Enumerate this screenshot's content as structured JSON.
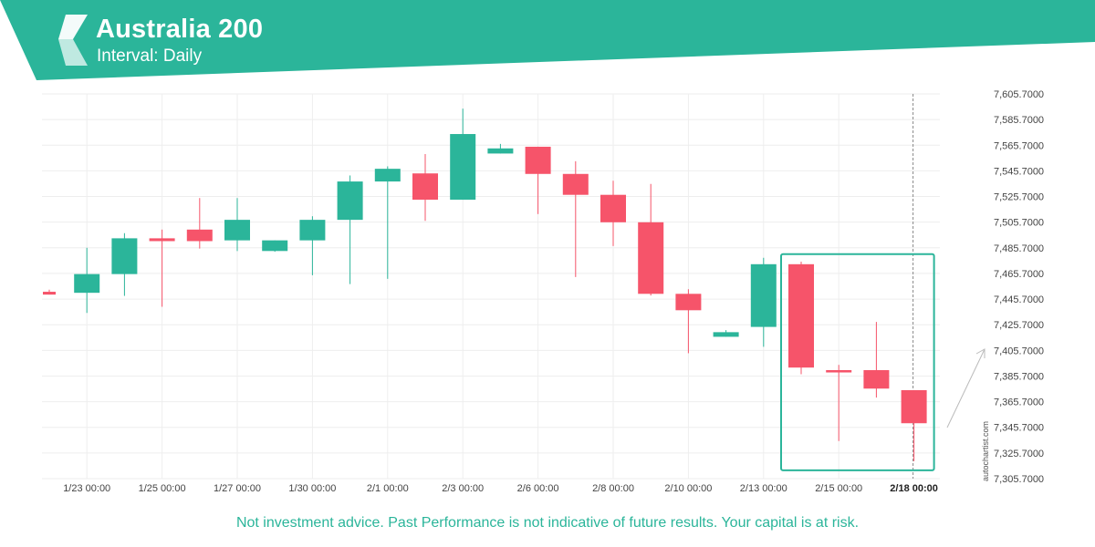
{
  "header": {
    "title": "Australia 200",
    "subtitle": "Interval: Daily"
  },
  "colors": {
    "brand": "#2bb59a",
    "bull": "#2bb59a",
    "bear": "#f6546a",
    "grid": "#eeeeee"
  },
  "watermark": "autochartist.com",
  "disclaimer": "Not investment advice. Past Performance is not indicative of future results. Your capital is at risk.",
  "chart_data": {
    "type": "candlestick",
    "ylim": [
      7305.7,
      7605.7
    ],
    "yticks": [
      7305.7,
      7325.7,
      7345.7,
      7365.7,
      7385.7,
      7405.7,
      7425.7,
      7445.7,
      7465.7,
      7485.7,
      7505.7,
      7525.7,
      7545.7,
      7565.7,
      7585.7,
      7605.7
    ],
    "ytick_labels": [
      "7,305.7000",
      "7,325.7000",
      "7,345.7000",
      "7,365.7000",
      "7,385.7000",
      "7,405.7000",
      "7,425.7000",
      "7,445.7000",
      "7,465.7000",
      "7,485.7000",
      "7,505.7000",
      "7,525.7000",
      "7,545.7000",
      "7,565.7000",
      "7,585.7000",
      "7,605.7000"
    ],
    "xtick_labels": [
      "1/23 00:00",
      "1/25 00:00",
      "1/27 00:00",
      "1/30 00:00",
      "2/1 00:00",
      "2/3 00:00",
      "2/6 00:00",
      "2/8 00:00",
      "2/10 00:00",
      "2/13 00:00",
      "2/15 00:00",
      "2/18 00:00"
    ],
    "xtick_bar_index": [
      1,
      3,
      5,
      7,
      9,
      11,
      13,
      15,
      17,
      19,
      21,
      23
    ],
    "highlighted_tick": "2/18 00:00",
    "candles": [
      {
        "o": 7451.4,
        "h": 7453.0,
        "l": 7449.2,
        "c": 7449.2
      },
      {
        "o": 7450.6,
        "h": 7485.7,
        "l": 7434.9,
        "c": 7465.2
      },
      {
        "o": 7465.2,
        "h": 7497.1,
        "l": 7448.2,
        "c": 7493.1
      },
      {
        "o": 7493.1,
        "h": 7499.9,
        "l": 7439.7,
        "c": 7490.9
      },
      {
        "o": 7499.9,
        "h": 7524.5,
        "l": 7485.1,
        "c": 7490.9
      },
      {
        "o": 7491.5,
        "h": 7524.5,
        "l": 7483.2,
        "c": 7507.5
      },
      {
        "o": 7483.2,
        "h": 7491.5,
        "l": 7482.6,
        "c": 7491.5
      },
      {
        "o": 7491.5,
        "h": 7510.3,
        "l": 7464.3,
        "c": 7507.5
      },
      {
        "o": 7507.5,
        "h": 7542.1,
        "l": 7457.4,
        "c": 7537.4
      },
      {
        "o": 7537.4,
        "h": 7549.2,
        "l": 7461.5,
        "c": 7547.3
      },
      {
        "o": 7543.7,
        "h": 7558.8,
        "l": 7506.7,
        "c": 7523.2
      },
      {
        "o": 7523.2,
        "h": 7594.2,
        "l": 7523.2,
        "c": 7574.4
      },
      {
        "o": 7559.2,
        "h": 7566.7,
        "l": 7559.2,
        "c": 7563.2
      },
      {
        "o": 7564.5,
        "h": 7564.5,
        "l": 7512.0,
        "c": 7543.3
      },
      {
        "o": 7543.3,
        "h": 7553.2,
        "l": 7462.9,
        "c": 7527.0
      },
      {
        "o": 7527.0,
        "h": 7538.0,
        "l": 7487.1,
        "c": 7505.6
      },
      {
        "o": 7505.6,
        "h": 7535.5,
        "l": 7448.5,
        "c": 7449.8
      },
      {
        "o": 7449.8,
        "h": 7453.4,
        "l": 7403.5,
        "c": 7437.0
      },
      {
        "o": 7416.3,
        "h": 7421.5,
        "l": 7416.3,
        "c": 7419.9
      },
      {
        "o": 7424.0,
        "h": 7477.9,
        "l": 7408.5,
        "c": 7472.9
      },
      {
        "o": 7472.9,
        "h": 7474.9,
        "l": 7387.1,
        "c": 7392.3
      },
      {
        "o": 7390.3,
        "h": 7394.4,
        "l": 7335.0,
        "c": 7388.5
      },
      {
        "o": 7390.3,
        "h": 7427.9,
        "l": 7368.9,
        "c": 7375.9
      },
      {
        "o": 7374.7,
        "h": 7374.7,
        "l": 7319.3,
        "c": 7348.9
      }
    ]
  }
}
